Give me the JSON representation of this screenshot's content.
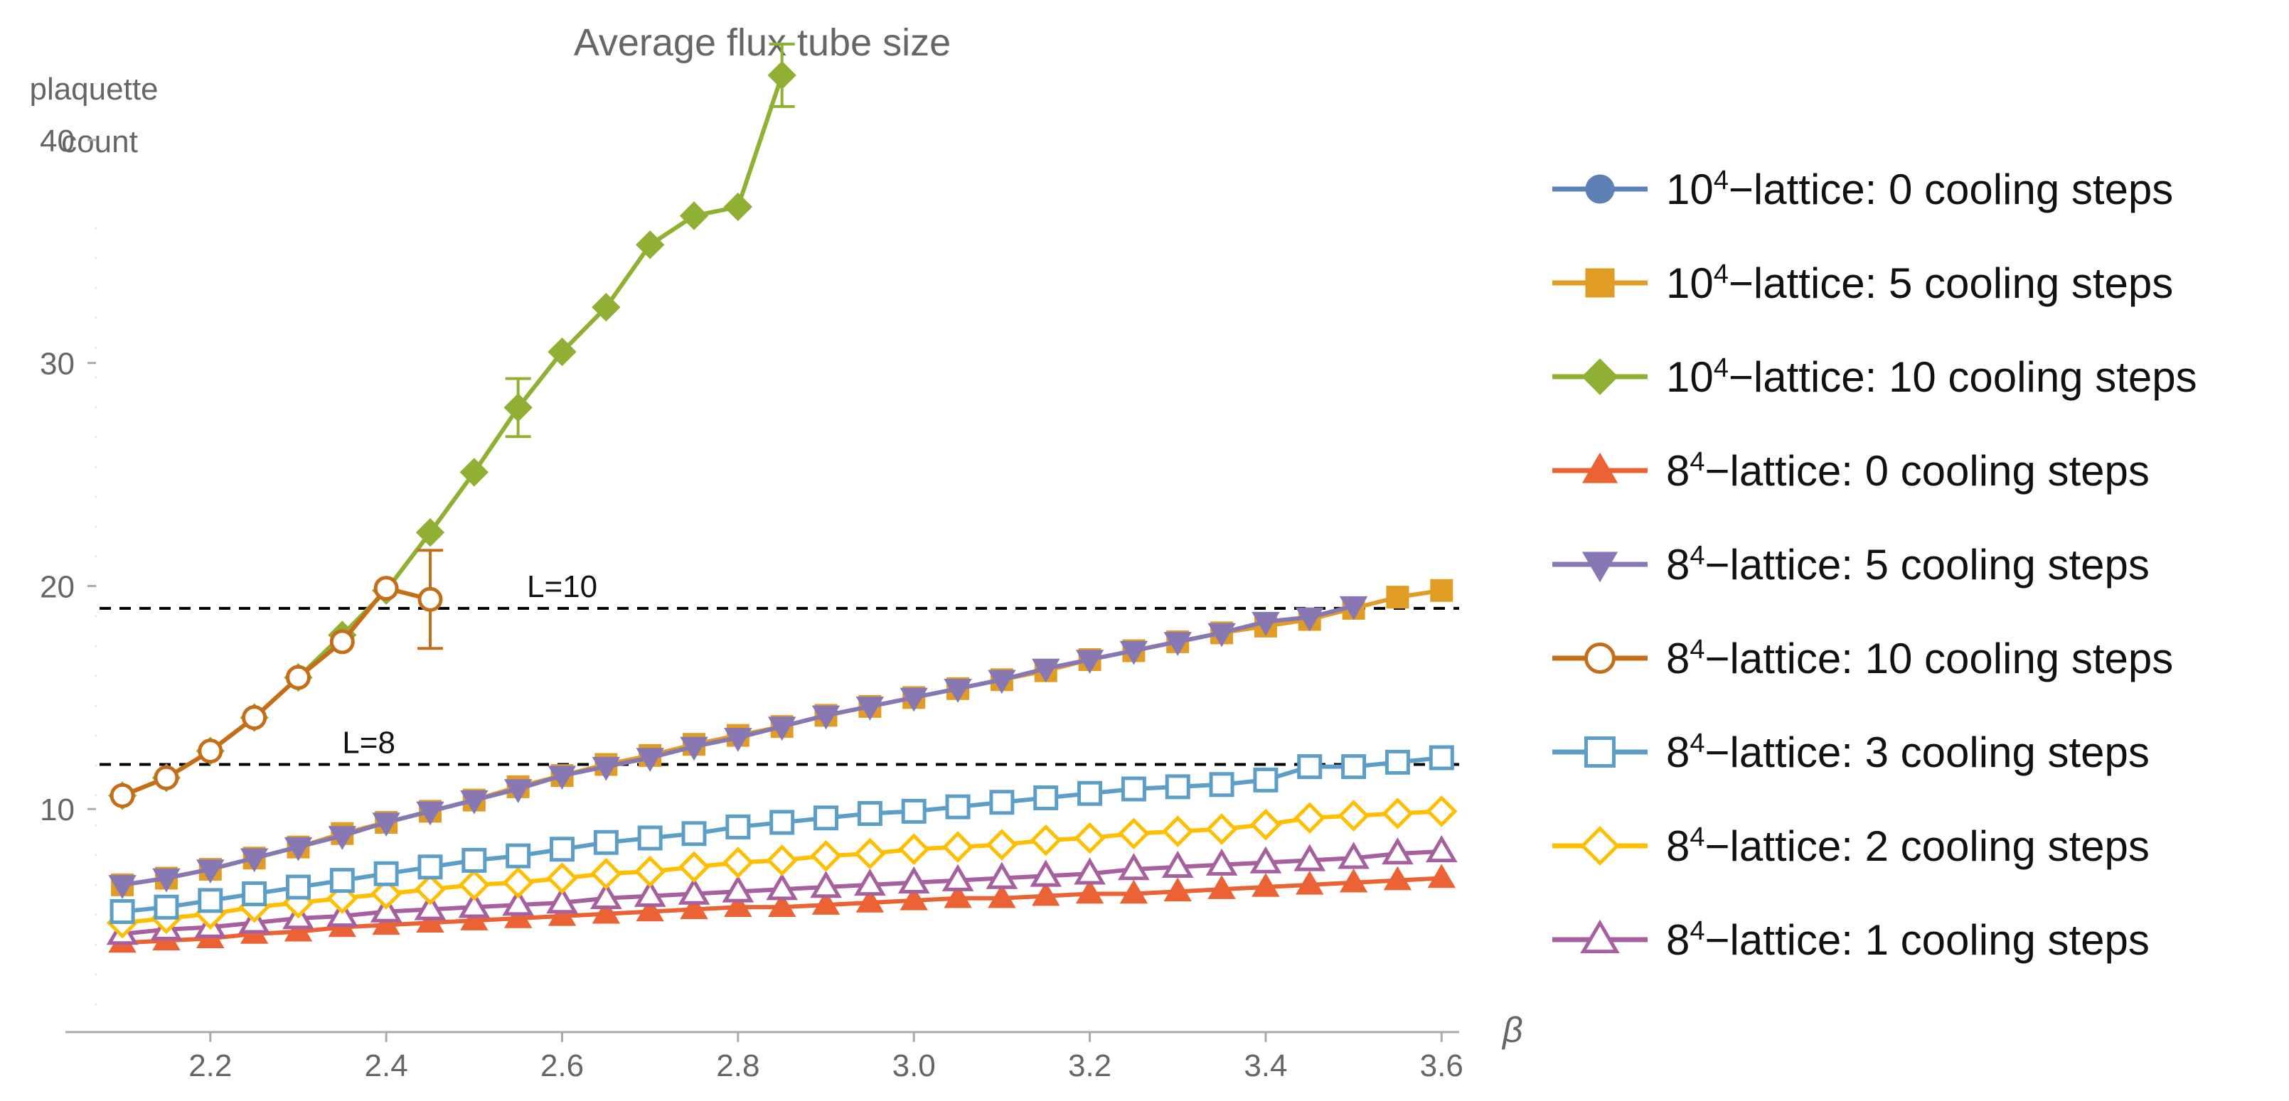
{
  "chart_data": {
    "type": "line",
    "title": "Average flux tube size",
    "ylabel_lines": [
      "plaquette",
      "count"
    ],
    "xlabel": "β",
    "xlim": [
      2.07,
      3.62
    ],
    "ylim": [
      0,
      45
    ],
    "xticks": [
      "2.2",
      "2.4",
      "2.6",
      "2.8",
      "3.0",
      "3.2",
      "3.4",
      "3.6"
    ],
    "yticks": [
      "10",
      "20",
      "30",
      "40"
    ],
    "reference_lines": [
      {
        "label": "L=10",
        "y": 19.0,
        "label_x": 2.56
      },
      {
        "label": "L=8",
        "y": 12.0,
        "label_x": 2.35
      }
    ],
    "x": [
      2.1,
      2.15,
      2.2,
      2.25,
      2.3,
      2.35,
      2.4,
      2.45,
      2.5,
      2.55,
      2.6,
      2.65,
      2.7,
      2.75,
      2.8,
      2.85,
      2.9,
      2.95,
      3.0,
      3.05,
      3.1,
      3.15,
      3.2,
      3.25,
      3.3,
      3.35,
      3.4,
      3.45,
      3.5,
      3.55,
      3.6
    ],
    "series": [
      {
        "name_base": "10",
        "name_sup": "4",
        "name_rest": "−lattice: 0 cooling steps",
        "color": "#5e81b5",
        "marker": "circle",
        "filled": true,
        "x": [],
        "values": []
      },
      {
        "name_base": "10",
        "name_sup": "4",
        "name_rest": "−lattice: 5 cooling steps",
        "color": "#e19c24",
        "marker": "square",
        "filled": true,
        "x": [
          2.1,
          2.15,
          2.2,
          2.25,
          2.3,
          2.35,
          2.4,
          2.45,
          2.5,
          2.55,
          2.6,
          2.65,
          2.7,
          2.75,
          2.8,
          2.85,
          2.9,
          2.95,
          3.0,
          3.05,
          3.1,
          3.15,
          3.2,
          3.25,
          3.3,
          3.35,
          3.4,
          3.45,
          3.5,
          3.55,
          3.6
        ],
        "values": [
          6.6,
          6.9,
          7.3,
          7.8,
          8.3,
          8.9,
          9.4,
          9.9,
          10.4,
          11.0,
          11.5,
          12.0,
          12.4,
          12.9,
          13.3,
          13.7,
          14.2,
          14.6,
          15.0,
          15.4,
          15.8,
          16.2,
          16.7,
          17.1,
          17.5,
          17.9,
          18.2,
          18.5,
          19.0,
          19.5,
          19.8
        ]
      },
      {
        "name_base": "10",
        "name_sup": "4",
        "name_rest": "−lattice: 10 cooling steps",
        "color": "#8fb032",
        "marker": "diamond",
        "filled": true,
        "x": [
          2.1,
          2.15,
          2.2,
          2.25,
          2.3,
          2.35,
          2.4,
          2.45,
          2.5,
          2.55,
          2.6,
          2.65,
          2.7,
          2.75,
          2.8,
          2.85
        ],
        "values": [
          10.6,
          11.4,
          12.6,
          14.1,
          15.9,
          17.8,
          19.8,
          22.4,
          25.1,
          28.0,
          30.5,
          32.5,
          35.3,
          36.6,
          37.0,
          42.9
        ],
        "errors": [
          0,
          0,
          0,
          0,
          0,
          0,
          0,
          0,
          0,
          1.3,
          0,
          0,
          0,
          0,
          0,
          1.4
        ]
      },
      {
        "name_base": "8",
        "name_sup": "4",
        "name_rest": "−lattice: 0 cooling steps",
        "color": "#eb6235",
        "marker": "triangle-up",
        "filled": true,
        "x": [
          2.1,
          2.15,
          2.2,
          2.25,
          2.3,
          2.35,
          2.4,
          2.45,
          2.5,
          2.55,
          2.6,
          2.65,
          2.7,
          2.75,
          2.8,
          2.85,
          2.9,
          2.95,
          3.0,
          3.05,
          3.1,
          3.15,
          3.2,
          3.25,
          3.3,
          3.35,
          3.4,
          3.45,
          3.5,
          3.55,
          3.6
        ],
        "values": [
          4.0,
          4.1,
          4.2,
          4.4,
          4.5,
          4.7,
          4.8,
          4.9,
          5.0,
          5.1,
          5.2,
          5.3,
          5.4,
          5.5,
          5.6,
          5.6,
          5.7,
          5.8,
          5.9,
          6.0,
          6.0,
          6.1,
          6.2,
          6.2,
          6.3,
          6.4,
          6.5,
          6.6,
          6.7,
          6.8,
          6.9
        ]
      },
      {
        "name_base": "8",
        "name_sup": "4",
        "name_rest": "−lattice: 5 cooling steps",
        "color": "#8778b3",
        "marker": "triangle-down",
        "filled": true,
        "x": [
          2.1,
          2.15,
          2.2,
          2.25,
          2.3,
          2.35,
          2.4,
          2.45,
          2.5,
          2.55,
          2.6,
          2.65,
          2.7,
          2.75,
          2.8,
          2.85,
          2.9,
          2.95,
          3.0,
          3.05,
          3.1,
          3.15,
          3.2,
          3.25,
          3.3,
          3.35,
          3.4,
          3.45,
          3.5
        ],
        "values": [
          6.6,
          6.9,
          7.3,
          7.8,
          8.3,
          8.8,
          9.4,
          9.9,
          10.4,
          10.9,
          11.5,
          11.9,
          12.3,
          12.8,
          13.2,
          13.7,
          14.2,
          14.6,
          15.0,
          15.4,
          15.8,
          16.3,
          16.7,
          17.1,
          17.5,
          17.9,
          18.4,
          18.6,
          19.1
        ]
      },
      {
        "name_base": "8",
        "name_sup": "4",
        "name_rest": "−lattice: 10 cooling steps",
        "color": "#c56e1a",
        "marker": "circle",
        "filled": false,
        "x": [
          2.1,
          2.15,
          2.2,
          2.25,
          2.3,
          2.35,
          2.4,
          2.45
        ],
        "values": [
          10.6,
          11.4,
          12.6,
          14.1,
          15.9,
          17.5,
          19.9,
          19.4
        ],
        "errors": [
          0,
          0,
          0,
          0,
          0,
          0,
          0,
          2.2
        ]
      },
      {
        "name_base": "8",
        "name_sup": "4",
        "name_rest": "−lattice: 3 cooling steps",
        "color": "#5d9ec7",
        "marker": "square",
        "filled": false,
        "x": [
          2.1,
          2.15,
          2.2,
          2.25,
          2.3,
          2.35,
          2.4,
          2.45,
          2.5,
          2.55,
          2.6,
          2.65,
          2.7,
          2.75,
          2.8,
          2.85,
          2.9,
          2.95,
          3.0,
          3.05,
          3.1,
          3.15,
          3.2,
          3.25,
          3.3,
          3.35,
          3.4,
          3.45,
          3.5,
          3.55,
          3.6
        ],
        "values": [
          5.4,
          5.6,
          5.9,
          6.2,
          6.5,
          6.8,
          7.1,
          7.4,
          7.7,
          7.9,
          8.2,
          8.5,
          8.7,
          8.9,
          9.2,
          9.4,
          9.6,
          9.8,
          9.9,
          10.1,
          10.3,
          10.5,
          10.7,
          10.9,
          11.0,
          11.1,
          11.3,
          11.9,
          11.9,
          12.1,
          12.3
        ]
      },
      {
        "name_base": "8",
        "name_sup": "4",
        "name_rest": "−lattice: 2 cooling steps",
        "color": "#ffbf00",
        "marker": "diamond",
        "filled": false,
        "x": [
          2.1,
          2.15,
          2.2,
          2.25,
          2.3,
          2.35,
          2.4,
          2.45,
          2.5,
          2.55,
          2.6,
          2.65,
          2.7,
          2.75,
          2.8,
          2.85,
          2.9,
          2.95,
          3.0,
          3.05,
          3.1,
          3.15,
          3.2,
          3.25,
          3.3,
          3.35,
          3.4,
          3.45,
          3.5,
          3.55,
          3.6
        ],
        "values": [
          4.9,
          5.1,
          5.3,
          5.6,
          5.8,
          6.0,
          6.2,
          6.4,
          6.6,
          6.7,
          6.9,
          7.1,
          7.2,
          7.4,
          7.6,
          7.7,
          7.9,
          8.0,
          8.2,
          8.3,
          8.4,
          8.6,
          8.7,
          8.9,
          9.0,
          9.1,
          9.3,
          9.6,
          9.7,
          9.8,
          9.9
        ]
      },
      {
        "name_base": "8",
        "name_sup": "4",
        "name_rest": "−lattice: 1 cooling steps",
        "color": "#a5609d",
        "marker": "triangle-up",
        "filled": false,
        "x": [
          2.1,
          2.15,
          2.2,
          2.25,
          2.3,
          2.35,
          2.4,
          2.45,
          2.5,
          2.55,
          2.6,
          2.65,
          2.7,
          2.75,
          2.8,
          2.85,
          2.9,
          2.95,
          3.0,
          3.05,
          3.1,
          3.15,
          3.2,
          3.25,
          3.3,
          3.35,
          3.4,
          3.45,
          3.5,
          3.55,
          3.6
        ],
        "values": [
          4.4,
          4.6,
          4.7,
          4.9,
          5.1,
          5.2,
          5.4,
          5.5,
          5.6,
          5.7,
          5.8,
          6.0,
          6.1,
          6.2,
          6.3,
          6.4,
          6.5,
          6.6,
          6.7,
          6.8,
          6.9,
          7.0,
          7.1,
          7.3,
          7.4,
          7.5,
          7.6,
          7.7,
          7.8,
          8.0,
          8.1
        ]
      }
    ]
  }
}
